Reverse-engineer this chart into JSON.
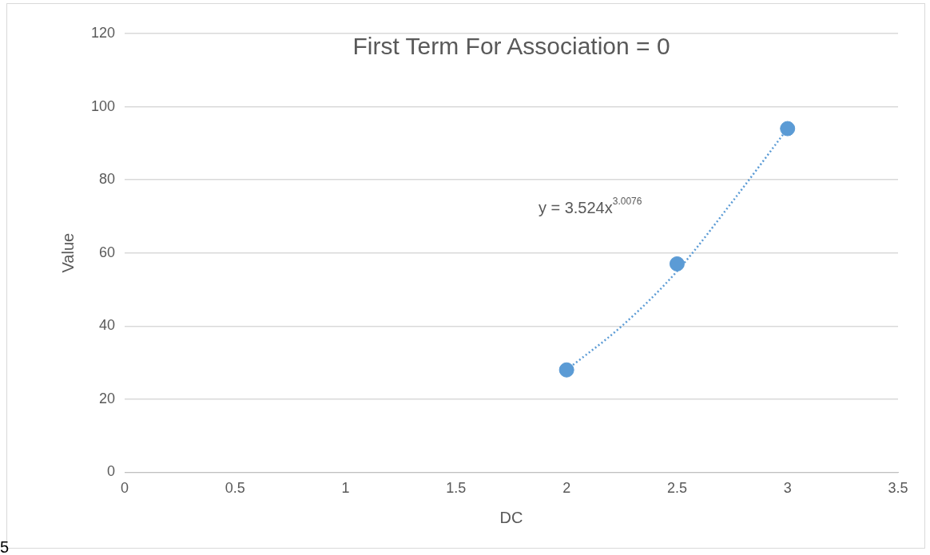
{
  "chart_data": {
    "type": "scatter",
    "title": "First Term For Association = 0",
    "xlabel": "DC",
    "ylabel": "Value",
    "series": [
      {
        "color": "#5b9bd5",
        "x": [
          2,
          2.5,
          3
        ],
        "values": [
          28,
          57,
          94
        ],
        "marker": "circle"
      },
      {
        "type": "line",
        "color": "#5b9bd5",
        "x": [
          2,
          2.25,
          2.5,
          2.75,
          3
        ],
        "values": [
          28,
          40,
          55,
          74,
          94
        ],
        "line_style": "dotted",
        "marker": "none"
      }
    ],
    "xlim": [
      0,
      3.5
    ],
    "xticks": [
      0,
      0.5,
      1,
      1.5,
      2,
      2.5,
      3,
      3.5
    ],
    "ylim": [
      0,
      120
    ],
    "yticks": [
      0,
      20,
      40,
      60,
      80,
      100,
      120
    ],
    "grid": "y",
    "legend": false,
    "annotations": [
      "y = 3.524x$^{3.0076}$",
      "5"
    ]
  }
}
